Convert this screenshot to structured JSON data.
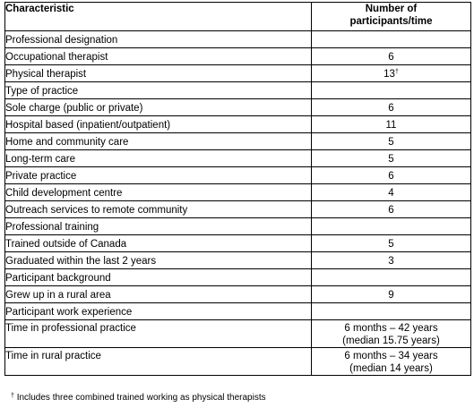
{
  "table": {
    "header": {
      "characteristic": "Characteristic",
      "count_line1": "Number of",
      "count_line2": "participants/time"
    },
    "sections": [
      {
        "label": "Professional designation",
        "rows": [
          {
            "label": "Occupational therapist",
            "value": "6"
          },
          {
            "label": "Physical therapist",
            "value": "13",
            "mark": "†"
          }
        ]
      },
      {
        "label": "Type of practice",
        "rows": [
          {
            "label": "Sole charge (public or private)",
            "value": "6"
          },
          {
            "label": "Hospital based (inpatient/outpatient)",
            "value": "11"
          },
          {
            "label": "Home and community care",
            "value": "5"
          },
          {
            "label": "Long-term care",
            "value": "5"
          },
          {
            "label": "Private practice",
            "value": "6"
          },
          {
            "label": "Child development centre",
            "value": "4"
          },
          {
            "label": "Outreach services to remote community",
            "value": "6"
          }
        ]
      },
      {
        "label": "Professional training",
        "rows": [
          {
            "label": "Trained outside of Canada",
            "value": "5"
          },
          {
            "label": "Graduated within the last 2 years",
            "value": "3"
          }
        ]
      },
      {
        "label": "Participant background",
        "rows": [
          {
            "label": "Grew up in a rural area",
            "value": "9"
          }
        ]
      },
      {
        "label": "Participant work experience",
        "rows": [
          {
            "label": "Time in professional practice",
            "value": "6 months – 42 years",
            "value2": "(median 15.75 years)"
          },
          {
            "label": "Time in rural practice",
            "value": "6 months – 34 years",
            "value2": "(median 14 years)"
          }
        ]
      }
    ]
  },
  "footnote": {
    "mark": "†",
    "text": "Includes three combined trained working as physical therapists"
  }
}
